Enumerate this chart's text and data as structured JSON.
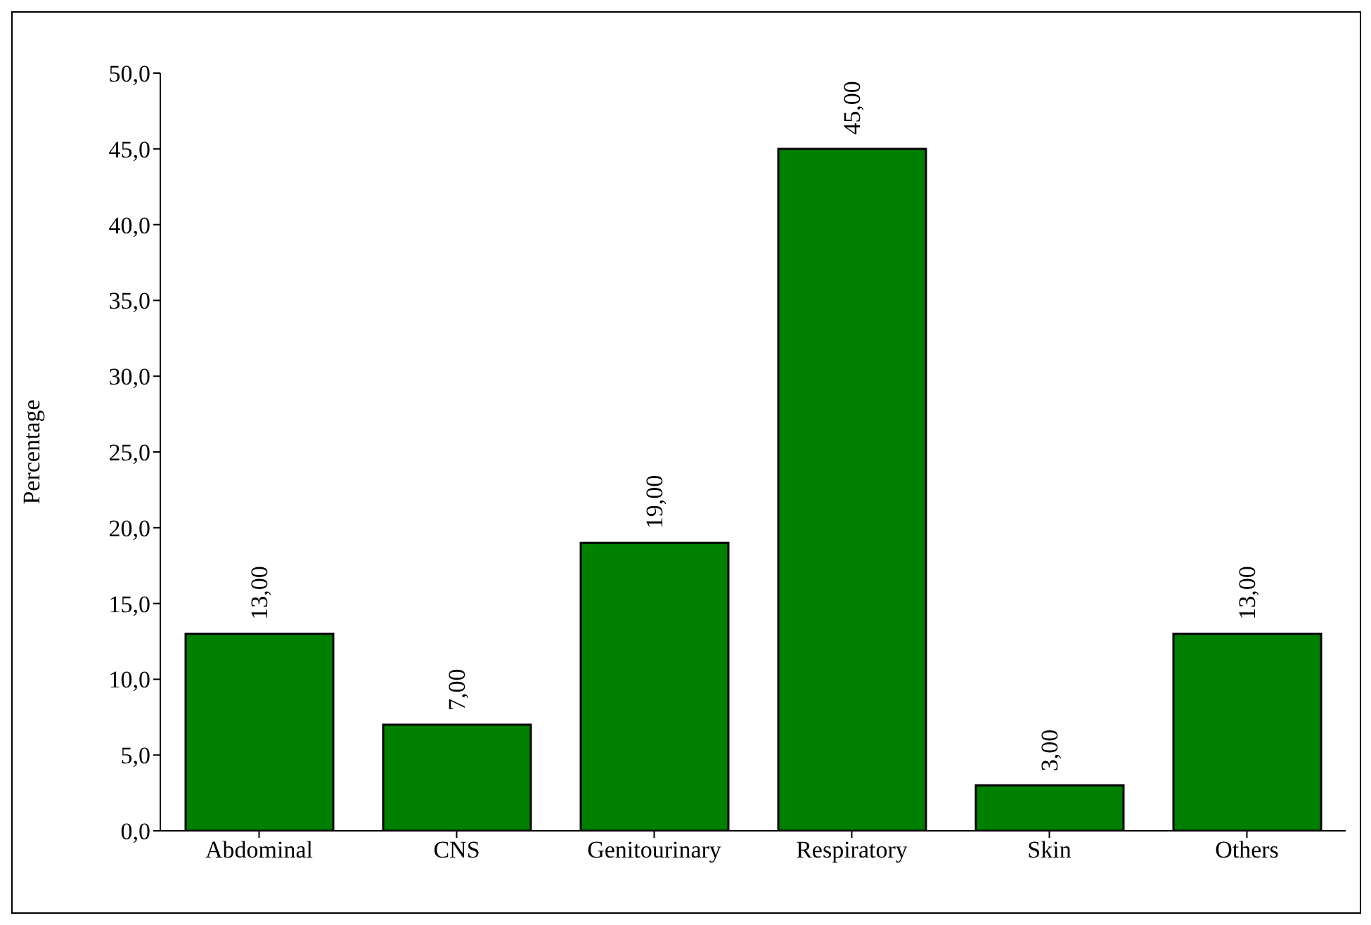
{
  "chart_data": {
    "type": "bar",
    "ylabel": "Percentage",
    "categories": [
      "Abdominal",
      "CNS",
      "Genitourinary",
      "Respiratory",
      "Skin",
      "Others"
    ],
    "values": [
      13,
      7,
      19,
      45,
      3,
      13
    ],
    "value_labels": [
      "13,00",
      "7,00",
      "19,00",
      "45,00",
      "3,00",
      "13,00"
    ],
    "color": "#008000",
    "ylim": [
      0,
      50
    ],
    "yticks": [
      {
        "value": 0,
        "label": "0,0"
      },
      {
        "value": 5,
        "label": "5,0"
      },
      {
        "value": 10,
        "label": "10,0"
      },
      {
        "value": 15,
        "label": "15,0"
      },
      {
        "value": 20,
        "label": "20,0"
      },
      {
        "value": 25,
        "label": "25,0"
      },
      {
        "value": 30,
        "label": "30,0"
      },
      {
        "value": 35,
        "label": "35,0"
      },
      {
        "value": 40,
        "label": "40,0"
      },
      {
        "value": 45,
        "label": "45,0"
      },
      {
        "value": 50,
        "label": "50,0"
      }
    ],
    "grid": false,
    "legend": false
  }
}
